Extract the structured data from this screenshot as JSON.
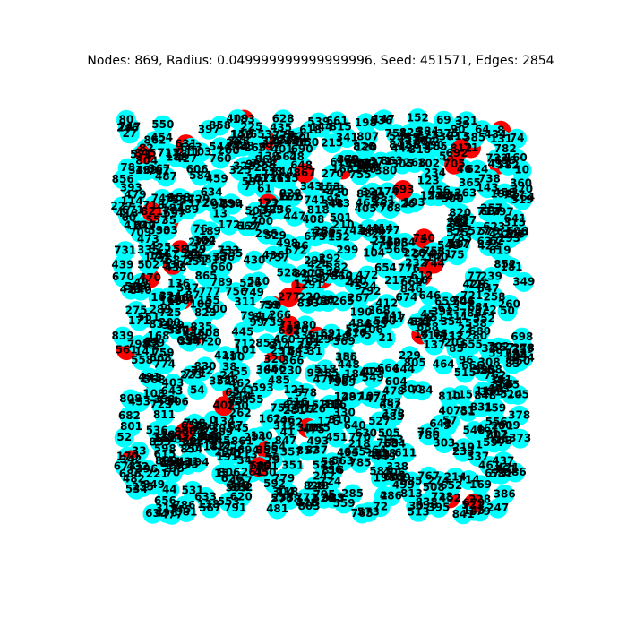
{
  "title": "Nodes: 869, Radius: 0.049999999999999996, Seed: 451571, Edges: 2854",
  "node_color": "#00ffff",
  "highlight_color": "#ff0000",
  "highlighted": [
    20,
    821,
    342,
    867,
    719,
    320,
    35,
    183,
    139,
    470,
    224,
    71,
    744,
    309,
    452,
    693,
    8,
    3,
    59,
    253,
    12,
    418,
    588,
    122,
    740,
    65,
    506,
    631,
    800,
    277,
    150,
    433,
    561,
    97,
    388,
    612,
    845,
    29,
    470,
    705,
    355,
    18,
    243,
    679,
    530,
    812,
    166,
    402,
    58,
    735
  ],
  "nodes": [
    0,
    1,
    2,
    3,
    4,
    5,
    6,
    7,
    8,
    9,
    10,
    11,
    12,
    13,
    14,
    15,
    16,
    17,
    18,
    19,
    20,
    21,
    22,
    23,
    24,
    25,
    26,
    27,
    28,
    29,
    30,
    31,
    32,
    33,
    34,
    35,
    36,
    37,
    38,
    39,
    40,
    41,
    42,
    43,
    44,
    45,
    46,
    47,
    48,
    49,
    50,
    51,
    52,
    53,
    54,
    55,
    56,
    57,
    58,
    59,
    60,
    61,
    62,
    63,
    64,
    65,
    66,
    67,
    68,
    69,
    70,
    71,
    72,
    73,
    74,
    75,
    76,
    77,
    78,
    79,
    80,
    81,
    82,
    83,
    84,
    85,
    86,
    87,
    88,
    89,
    90,
    91,
    92,
    93,
    94,
    95,
    96,
    97,
    98,
    99,
    100,
    101,
    102,
    103,
    104,
    105,
    106,
    107,
    108,
    109,
    110,
    111,
    112,
    113,
    114,
    115,
    116,
    117,
    118,
    119,
    120,
    121,
    122,
    123,
    124,
    125,
    126,
    127,
    128,
    129,
    130,
    131,
    132,
    133,
    134,
    135,
    136,
    137,
    138,
    139,
    140,
    141,
    142,
    143,
    144,
    145,
    146,
    147,
    148,
    149,
    150,
    151,
    152,
    153,
    154,
    155,
    156,
    157,
    158,
    159,
    160,
    161,
    162,
    163,
    164,
    165,
    166,
    167,
    168,
    169,
    170,
    171,
    172,
    173,
    174,
    175,
    176,
    177,
    178,
    179,
    180,
    181,
    182,
    183,
    184,
    185,
    186,
    187,
    188,
    189,
    190,
    191,
    192,
    193,
    194,
    195,
    196,
    197,
    198,
    199,
    200,
    201,
    202,
    203,
    204,
    205,
    206,
    207,
    208,
    209,
    210,
    211,
    212,
    213,
    214,
    215,
    216,
    217,
    218,
    219,
    220,
    221,
    222,
    223,
    224,
    225,
    226,
    227,
    228,
    229,
    230,
    231,
    232,
    233,
    234,
    235,
    236,
    237,
    238,
    239,
    240,
    241,
    242,
    243,
    244,
    245,
    246,
    247,
    248,
    249,
    250,
    251,
    252,
    253,
    254,
    255,
    256,
    257,
    258,
    259,
    260,
    261,
    262,
    263,
    264,
    265,
    266,
    267,
    268,
    269,
    270,
    271,
    272,
    273,
    274,
    275,
    276,
    277,
    278,
    279,
    280,
    281,
    282,
    283,
    284,
    285,
    286,
    287,
    288,
    289,
    290,
    291,
    292,
    293,
    294,
    295,
    296,
    297,
    298,
    299,
    300,
    301,
    302,
    303,
    304,
    305,
    306,
    307,
    308,
    309,
    310,
    311,
    312,
    313,
    314,
    315,
    316,
    317,
    318,
    319,
    320,
    321,
    322,
    323,
    324,
    325,
    326,
    327,
    328,
    329,
    330,
    331,
    332,
    333,
    334,
    335,
    336,
    337,
    338,
    339,
    340,
    341,
    342,
    343,
    344,
    345,
    346,
    347,
    348,
    349,
    350,
    351,
    352,
    353,
    354,
    355,
    356,
    357,
    358,
    359,
    360,
    361,
    362,
    363,
    364,
    365,
    366,
    367,
    368,
    369,
    370,
    371,
    372,
    373,
    374,
    375,
    376,
    377,
    378,
    379,
    380,
    381,
    382,
    383,
    384,
    385,
    386,
    387,
    388,
    389,
    390,
    391,
    392,
    393,
    394,
    395,
    396,
    397,
    398,
    399,
    400,
    401,
    402,
    403,
    404,
    405,
    406,
    407,
    408,
    409,
    410,
    411,
    412,
    413,
    414,
    415,
    416,
    417,
    418,
    419,
    420,
    421,
    422,
    423,
    424,
    425,
    426,
    427,
    428,
    429,
    430,
    431,
    432,
    433,
    434,
    435,
    436,
    437,
    438,
    439,
    440,
    441,
    442,
    443,
    444,
    445,
    446,
    447,
    448,
    449,
    450,
    451,
    452,
    453,
    454,
    455,
    456,
    457,
    458,
    459,
    460,
    461,
    462,
    463,
    464,
    465,
    466,
    467,
    468,
    469,
    470,
    471,
    472,
    473,
    474,
    475,
    476,
    477,
    478,
    479,
    480,
    481,
    482,
    483,
    484,
    485,
    486,
    487,
    488,
    489,
    490,
    491,
    492,
    493,
    494,
    495,
    496,
    497,
    498,
    499,
    500,
    501,
    502,
    503,
    504,
    505,
    506,
    507,
    508,
    509,
    510,
    511,
    512,
    513,
    514,
    515,
    516,
    517,
    518,
    519,
    520,
    521,
    522,
    523,
    524,
    525,
    526,
    527,
    528,
    529,
    530,
    531,
    532,
    533,
    534,
    535,
    536,
    537,
    538,
    539,
    540,
    541,
    542,
    543,
    544,
    545,
    546,
    547,
    548,
    549,
    550,
    551,
    552,
    553,
    554,
    555,
    556,
    557,
    558,
    559,
    560,
    561,
    562,
    563,
    564,
    565,
    566,
    567,
    568,
    569,
    570,
    571,
    572,
    573,
    574,
    575,
    576,
    577,
    578,
    579,
    580,
    581,
    582,
    583,
    584,
    585,
    586,
    587,
    588,
    589,
    590,
    591,
    592,
    593,
    594,
    595,
    596,
    597,
    598,
    599,
    600,
    601,
    602,
    603,
    604,
    605,
    606,
    607,
    608,
    609,
    610,
    611,
    612,
    613,
    614,
    615,
    616,
    617,
    618,
    619,
    620,
    621,
    622,
    623,
    624,
    625,
    626,
    627,
    628,
    629,
    630,
    631,
    632,
    633,
    634,
    635,
    636,
    637,
    638,
    639,
    640,
    641,
    642,
    643,
    644,
    645,
    646,
    647,
    648,
    649,
    650,
    651,
    652,
    653,
    654,
    655,
    656,
    657,
    658,
    659,
    660,
    661,
    662,
    663,
    664,
    665,
    666,
    667,
    668,
    669,
    670,
    671,
    672,
    673,
    674,
    675,
    676,
    677,
    678,
    679,
    680,
    681,
    682,
    683,
    684,
    685,
    686,
    687,
    688,
    689,
    690,
    691,
    692,
    693,
    694,
    695,
    696,
    697,
    698,
    699,
    700,
    701,
    702,
    703,
    704,
    705,
    706,
    707,
    708,
    709,
    710,
    711,
    712,
    713,
    714,
    715,
    716,
    717,
    718,
    719,
    720,
    721,
    722,
    723,
    724,
    725,
    726,
    727,
    728,
    729,
    730,
    731,
    732,
    733,
    734,
    735,
    736,
    737,
    738,
    739,
    740,
    741,
    742,
    743,
    744,
    745,
    746,
    747,
    748,
    749,
    750,
    751,
    752,
    753,
    754,
    755,
    756,
    757,
    758,
    759,
    760,
    761,
    762,
    763,
    764,
    765,
    766,
    767,
    768,
    769,
    770,
    771,
    772,
    773,
    774,
    775,
    776,
    777,
    778,
    779,
    780,
    781,
    782,
    783,
    784,
    785,
    786,
    787,
    788,
    789,
    790,
    791,
    792,
    793,
    794,
    795,
    796,
    797,
    798,
    799,
    800,
    801,
    802,
    803,
    804,
    805,
    806,
    807,
    808,
    809,
    810,
    811,
    812,
    813,
    814,
    815,
    816,
    817,
    818,
    819,
    820,
    821,
    822,
    823,
    824,
    825,
    826,
    827,
    828,
    829,
    830,
    831,
    832,
    833,
    834,
    835,
    836,
    837,
    838,
    839,
    840,
    841,
    842,
    843,
    844,
    845,
    846,
    847,
    848,
    849,
    850,
    851,
    852,
    853,
    854,
    855,
    856,
    857,
    858,
    859,
    860,
    861,
    862,
    863,
    864,
    865,
    866,
    867,
    868
  ]
}
